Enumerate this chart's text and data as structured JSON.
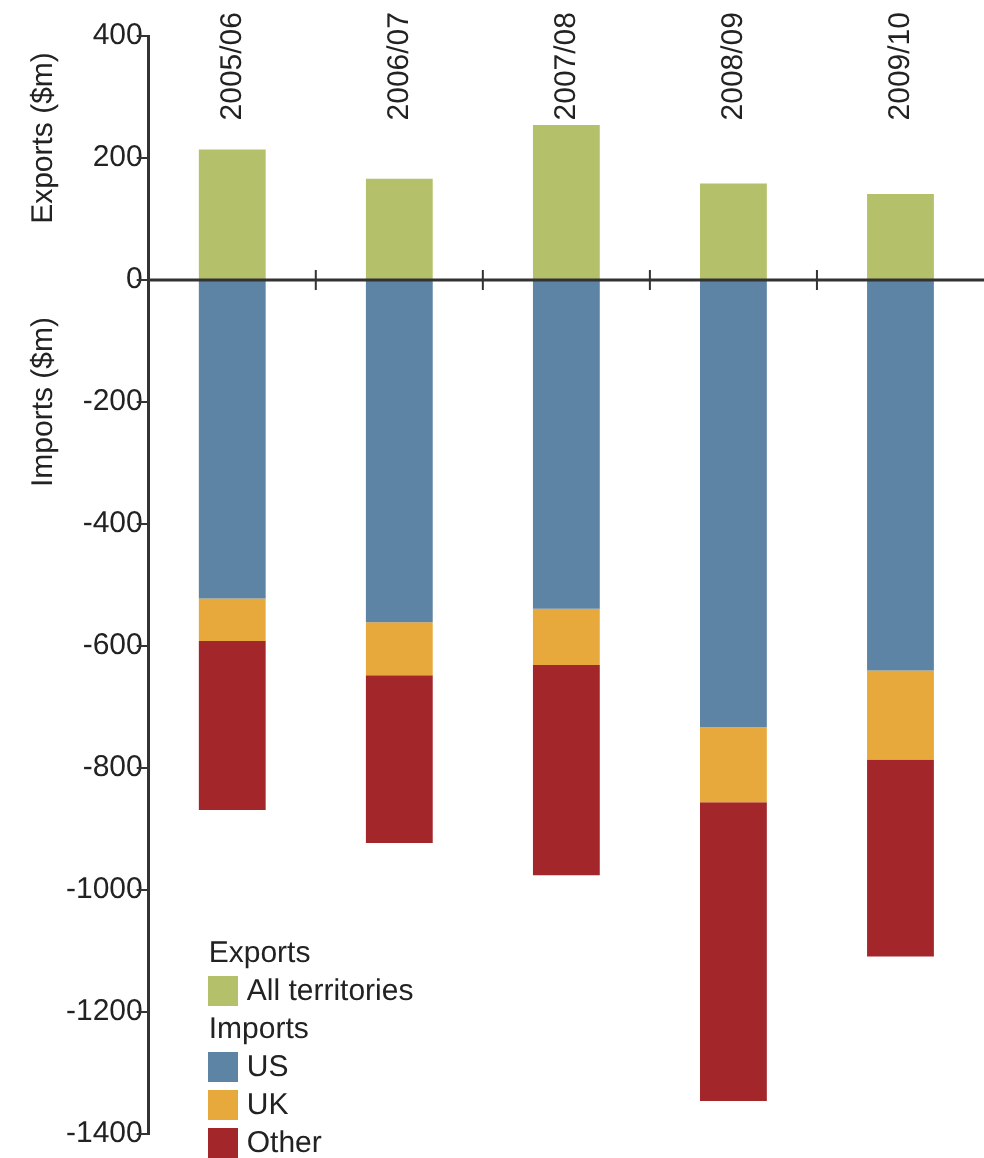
{
  "chart_data": {
    "type": "bar",
    "stacked": true,
    "ylabel": "Exports ($m)",
    "annotations": [
      "Imports ($m)",
      "Exports",
      "Imports"
    ],
    "categories": [
      "2005/06",
      "2006/07",
      "2007/08",
      "2008/09",
      "2009/10"
    ],
    "series": [
      {
        "name": "All territories",
        "color": "#b5c06a",
        "values": [
          214,
          166,
          254,
          158,
          141
        ]
      },
      {
        "name": "US",
        "color": "#5d84a4",
        "values": [
          -522,
          -561,
          -539,
          -733,
          -640
        ]
      },
      {
        "name": "UK",
        "color": "#e8a93c",
        "values": [
          -70,
          -87,
          -92,
          -123,
          -146
        ]
      },
      {
        "name": "Other",
        "color": "#a3262a",
        "values": [
          -277,
          -275,
          -345,
          -490,
          -323
        ]
      }
    ],
    "ylim": [
      -1400,
      400
    ],
    "yticks": [
      -1400,
      -1200,
      -1000,
      -800,
      -600,
      -400,
      -200,
      0,
      200,
      400
    ],
    "legend": "bottom left"
  }
}
